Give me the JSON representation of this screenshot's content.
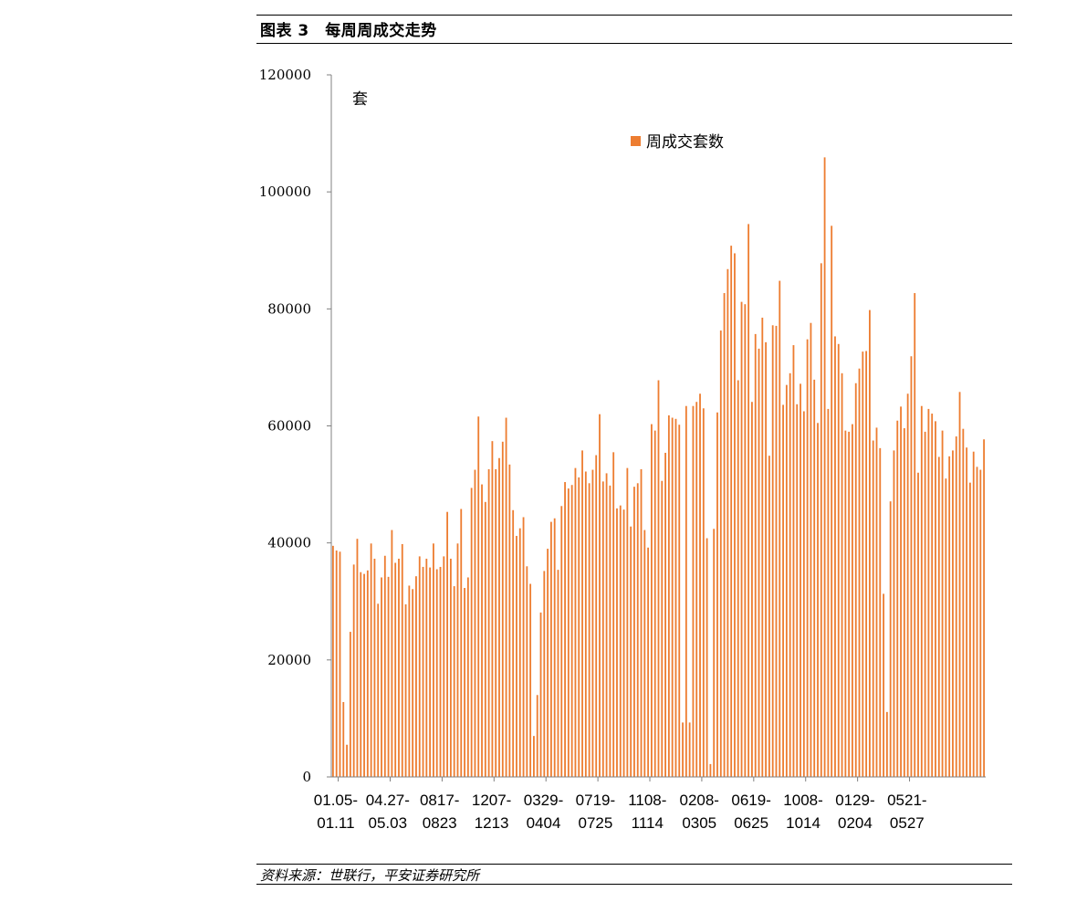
{
  "header": {
    "title": "图表 3　每周周成交走势"
  },
  "source": "资料来源：世联行，平安证券研究所",
  "colors": {
    "bar": "#ED7D31",
    "axis": "#808080",
    "text": "#000000"
  },
  "chart_data": {
    "type": "bar",
    "unit": "套",
    "legend": {
      "label": "周成交套数",
      "position": "top-center"
    },
    "ylim": [
      0,
      120000
    ],
    "yticks": [
      0,
      20000,
      40000,
      60000,
      80000,
      100000,
      120000
    ],
    "ytick_labels": [
      "0",
      "20000",
      "40000",
      "60000",
      "80000",
      "100000",
      "120000"
    ],
    "grid": false,
    "category_labels": [
      [
        "01.05-",
        "01.11"
      ],
      [
        "04.27-",
        "05.03"
      ],
      [
        "0817-",
        "0823"
      ],
      [
        "1207-",
        "1213"
      ],
      [
        "0329-",
        "0404"
      ],
      [
        "0719-",
        "0725"
      ],
      [
        "1108-",
        "1114"
      ],
      [
        "0208-",
        "0305"
      ],
      [
        "0619-",
        "0625"
      ],
      [
        "1008-",
        "1014"
      ],
      [
        "0129-",
        "0204"
      ],
      [
        "0521-",
        "0527"
      ]
    ],
    "label_every": 15,
    "series": [
      {
        "name": "周成交套数",
        "values": [
          39500,
          38700,
          38500,
          12800,
          5500,
          24800,
          36300,
          40700,
          35000,
          34700,
          35300,
          39900,
          37300,
          29600,
          34100,
          37800,
          34200,
          42200,
          36600,
          37300,
          39800,
          29500,
          32700,
          32100,
          34300,
          37700,
          35900,
          37300,
          35800,
          39900,
          35500,
          35900,
          37700,
          45300,
          37300,
          32600,
          39900,
          45800,
          32300,
          34100,
          49400,
          52500,
          61600,
          50000,
          47000,
          52600,
          57400,
          52600,
          54500,
          57300,
          61400,
          53400,
          45600,
          41200,
          42500,
          44400,
          36000,
          33000,
          7000,
          14000,
          28100,
          35200,
          39000,
          43600,
          44200,
          35400,
          46300,
          50400,
          49300,
          49900,
          52800,
          51200,
          55800,
          52200,
          50200,
          52500,
          55000,
          62000,
          50500,
          51900,
          49800,
          55500,
          45900,
          46400,
          45700,
          52800,
          42800,
          49600,
          50200,
          52600,
          42200,
          39200,
          60300,
          59200,
          67800,
          50600,
          55400,
          61800,
          61400,
          61200,
          60200,
          9300,
          63400,
          9300,
          63400,
          64100,
          65500,
          63000,
          40800,
          2200,
          42400,
          62300,
          76300,
          82700,
          86800,
          90800,
          89500,
          67800,
          81200,
          80800,
          94500,
          64100,
          75700,
          73200,
          78500,
          74300,
          54900,
          77200,
          77100,
          84800,
          63600,
          67000,
          69000,
          73800,
          63700,
          67200,
          62500,
          74800,
          77600,
          67900,
          60500,
          87800,
          105900,
          62900,
          94200,
          75300,
          74000,
          69000,
          59200,
          59000,
          60300,
          67300,
          69800,
          72700,
          72800,
          79800,
          57500,
          59700,
          56200,
          31300,
          11100,
          47100,
          55800,
          60900,
          63300,
          59600,
          65500,
          71900,
          82700,
          52000,
          63400,
          59000,
          62900,
          62100,
          60800,
          54700,
          59200,
          51000,
          54800,
          55800,
          58200,
          65800,
          59500,
          56300,
          50300,
          55600,
          53000,
          52500,
          57700
        ]
      }
    ]
  }
}
